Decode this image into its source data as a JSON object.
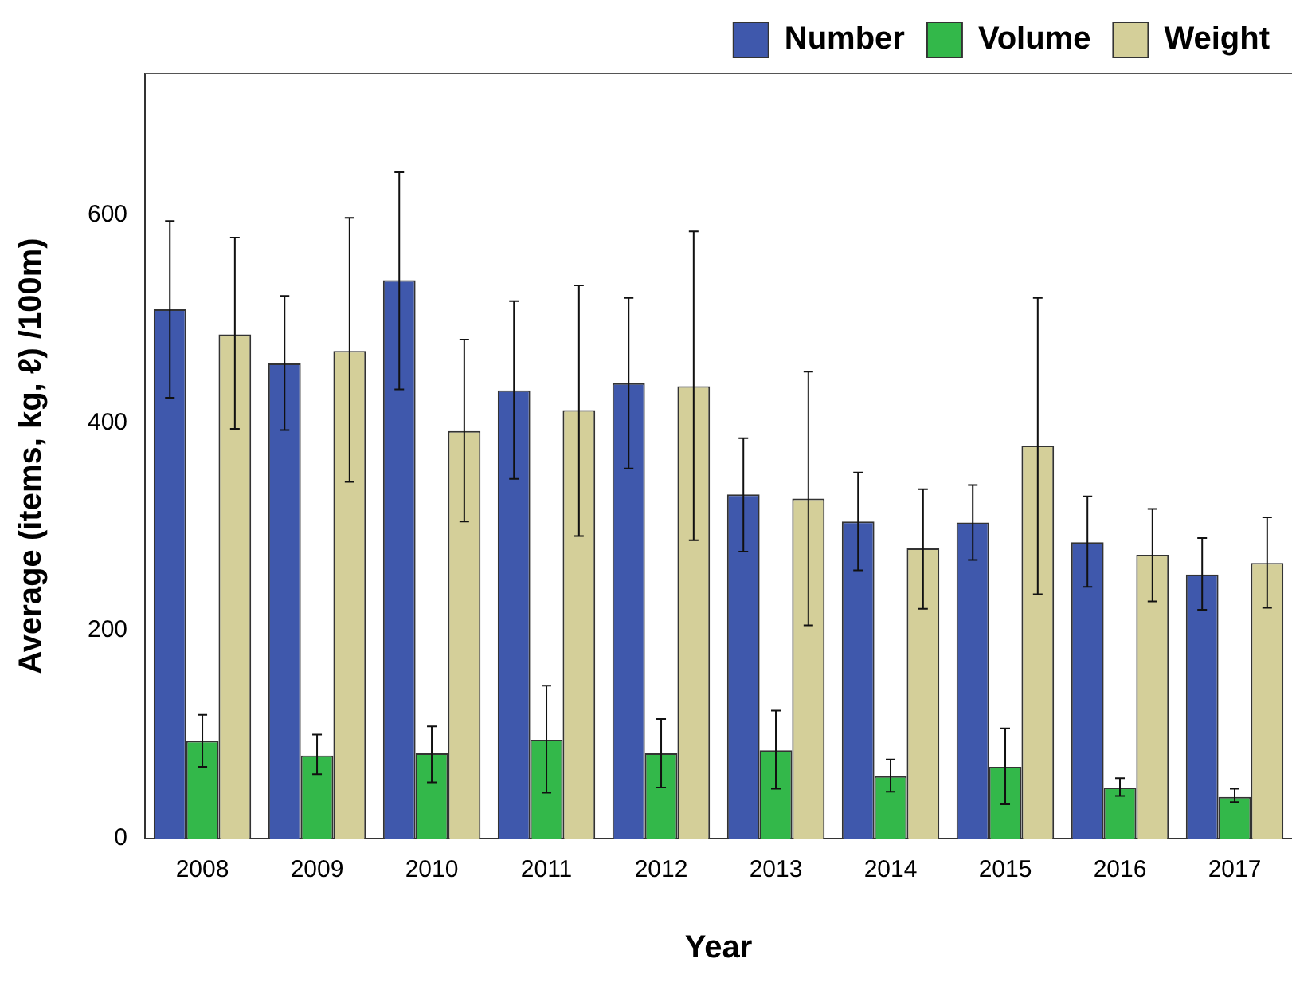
{
  "chart_data": {
    "type": "bar",
    "xlabel": "Year",
    "ylabel": "Average (items, kg, ℓ) /100m)",
    "categories": [
      "2008",
      "2009",
      "2010",
      "2011",
      "2012",
      "2013",
      "2014",
      "2015",
      "2016",
      "2017"
    ],
    "series": [
      {
        "name": "Number",
        "color": "#3f58ac",
        "values": [
          509,
          457,
          537,
          431,
          438,
          331,
          305,
          304,
          285,
          254
        ],
        "errors": [
          [
            424,
            594
          ],
          [
            393,
            522
          ],
          [
            432,
            641
          ],
          [
            346,
            517
          ],
          [
            356,
            520
          ],
          [
            276,
            385
          ],
          [
            258,
            352
          ],
          [
            268,
            340
          ],
          [
            242,
            329
          ],
          [
            220,
            289
          ]
        ]
      },
      {
        "name": "Volume",
        "color": "#33b84a",
        "values": [
          94,
          80,
          82,
          95,
          82,
          85,
          60,
          69,
          49,
          40
        ],
        "errors": [
          [
            69,
            119
          ],
          [
            62,
            100
          ],
          [
            54,
            108
          ],
          [
            44,
            147
          ],
          [
            49,
            115
          ],
          [
            48,
            123
          ],
          [
            45,
            76
          ],
          [
            33,
            106
          ],
          [
            41,
            58
          ],
          [
            35,
            48
          ]
        ]
      },
      {
        "name": "Weight",
        "color": "#d4cf99",
        "values": [
          485,
          469,
          392,
          412,
          435,
          327,
          279,
          378,
          273,
          265
        ],
        "errors": [
          [
            394,
            578
          ],
          [
            343,
            597
          ],
          [
            305,
            480
          ],
          [
            291,
            532
          ],
          [
            287,
            584
          ],
          [
            205,
            449
          ],
          [
            221,
            336
          ],
          [
            235,
            520
          ],
          [
            228,
            317
          ],
          [
            222,
            309
          ]
        ]
      }
    ],
    "ylim": [
      0,
      736
    ],
    "yticks": [
      0,
      200,
      400,
      600
    ],
    "grid": false,
    "legend": "top right"
  }
}
